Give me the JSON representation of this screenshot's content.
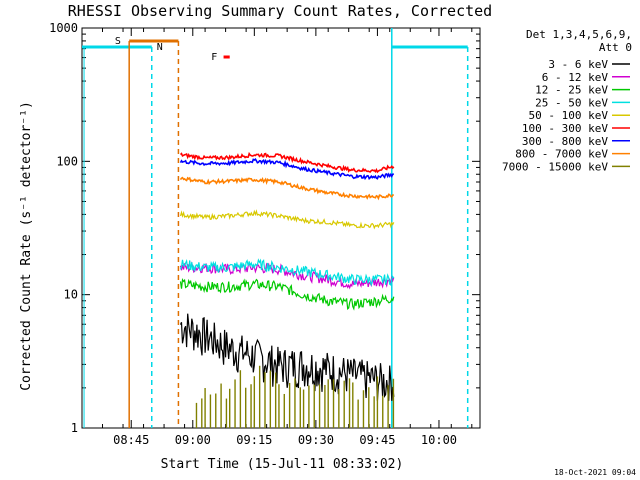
{
  "chart_data": {
    "type": "line",
    "title": "RHESSI Observing Summary Count Rates, Corrected",
    "xlabel": "Start Time (15-Jul-11 08:33:02)",
    "ylabel": "Corrected Count Rate (s⁻¹ detector⁻¹)",
    "yscale": "log",
    "ylim": [
      1,
      1000
    ],
    "xlim_minutes_after_0833": [
      0,
      97
    ],
    "ytick_values": [
      1,
      10,
      100,
      1000
    ],
    "ytick_labels": [
      "1",
      "10",
      "100",
      "1000"
    ],
    "xtick_minutes": [
      12,
      27,
      42,
      57,
      72,
      87
    ],
    "xtick_labels": [
      "08:45",
      "09:00",
      "09:15",
      "09:30",
      "09:45",
      "10:00"
    ],
    "legend_header": [
      "Det 1,3,4,5,6,9,",
      "Att 0"
    ],
    "legend_position": "right-outside",
    "footer_date": "18-Oct-2021 09:04",
    "flags": [
      {
        "label": "S",
        "color": "#e07000"
      },
      {
        "label": "N",
        "color": "#00d8e8"
      },
      {
        "label": "F",
        "color": "#ff0000"
      }
    ],
    "series": [
      {
        "name": "3 - 6 keV",
        "color": "#000000",
        "x": [
          24,
          30,
          36,
          42,
          48,
          54,
          60,
          66,
          72,
          76
        ],
        "y": [
          6,
          5,
          4,
          3.5,
          3,
          3,
          2.8,
          2.5,
          2.3,
          2.2
        ]
      },
      {
        "name": "6 - 12 keV",
        "color": "#d000d0",
        "x": [
          24,
          30,
          36,
          42,
          48,
          54,
          60,
          66,
          72,
          76
        ],
        "y": [
          16,
          16,
          15.5,
          16,
          15.5,
          14,
          13,
          12,
          12.5,
          13
        ]
      },
      {
        "name": "12 - 25 keV",
        "color": "#00c800",
        "x": [
          24,
          30,
          36,
          42,
          48,
          54,
          60,
          66,
          72,
          76
        ],
        "y": [
          12,
          11.5,
          11.5,
          12,
          11.5,
          10,
          9,
          8.5,
          9,
          9.5
        ]
      },
      {
        "name": "25 - 50 keV",
        "color": "#00e0e0",
        "x": [
          24,
          30,
          36,
          42,
          48,
          54,
          60,
          66,
          72,
          76
        ],
        "y": [
          17,
          16,
          16,
          17,
          16,
          15,
          14,
          13,
          13,
          13
        ]
      },
      {
        "name": "50 - 100 keV",
        "color": "#d8c800",
        "x": [
          24,
          30,
          36,
          42,
          48,
          54,
          60,
          66,
          72,
          76
        ],
        "y": [
          40,
          38,
          39,
          41,
          39,
          36,
          35,
          33,
          33,
          34
        ]
      },
      {
        "name": "100 - 300 keV",
        "color": "#ff0000",
        "x": [
          24,
          30,
          36,
          42,
          48,
          54,
          60,
          66,
          72,
          76
        ],
        "y": [
          112,
          106,
          107,
          112,
          110,
          100,
          92,
          86,
          85,
          92
        ]
      },
      {
        "name": "300 - 800 keV",
        "color": "#0000ff",
        "x": [
          24,
          30,
          36,
          42,
          48,
          54,
          60,
          66,
          72,
          76
        ],
        "y": [
          100,
          96,
          97,
          101,
          98,
          88,
          82,
          77,
          76,
          80
        ]
      },
      {
        "name": "800 - 7000 keV",
        "color": "#ff8000",
        "x": [
          24,
          30,
          36,
          42,
          48,
          54,
          60,
          66,
          72,
          76
        ],
        "y": [
          75,
          70,
          71,
          73,
          70,
          63,
          58,
          55,
          54,
          56
        ]
      },
      {
        "name": "7000 - 15000 keV",
        "color": "#808000",
        "x": [
          27,
          33,
          39,
          45,
          51,
          57,
          63,
          69,
          75
        ],
        "y": [
          1.8,
          1.9,
          2.2,
          2.5,
          2,
          1.8,
          2,
          1.9,
          2
        ]
      }
    ]
  }
}
